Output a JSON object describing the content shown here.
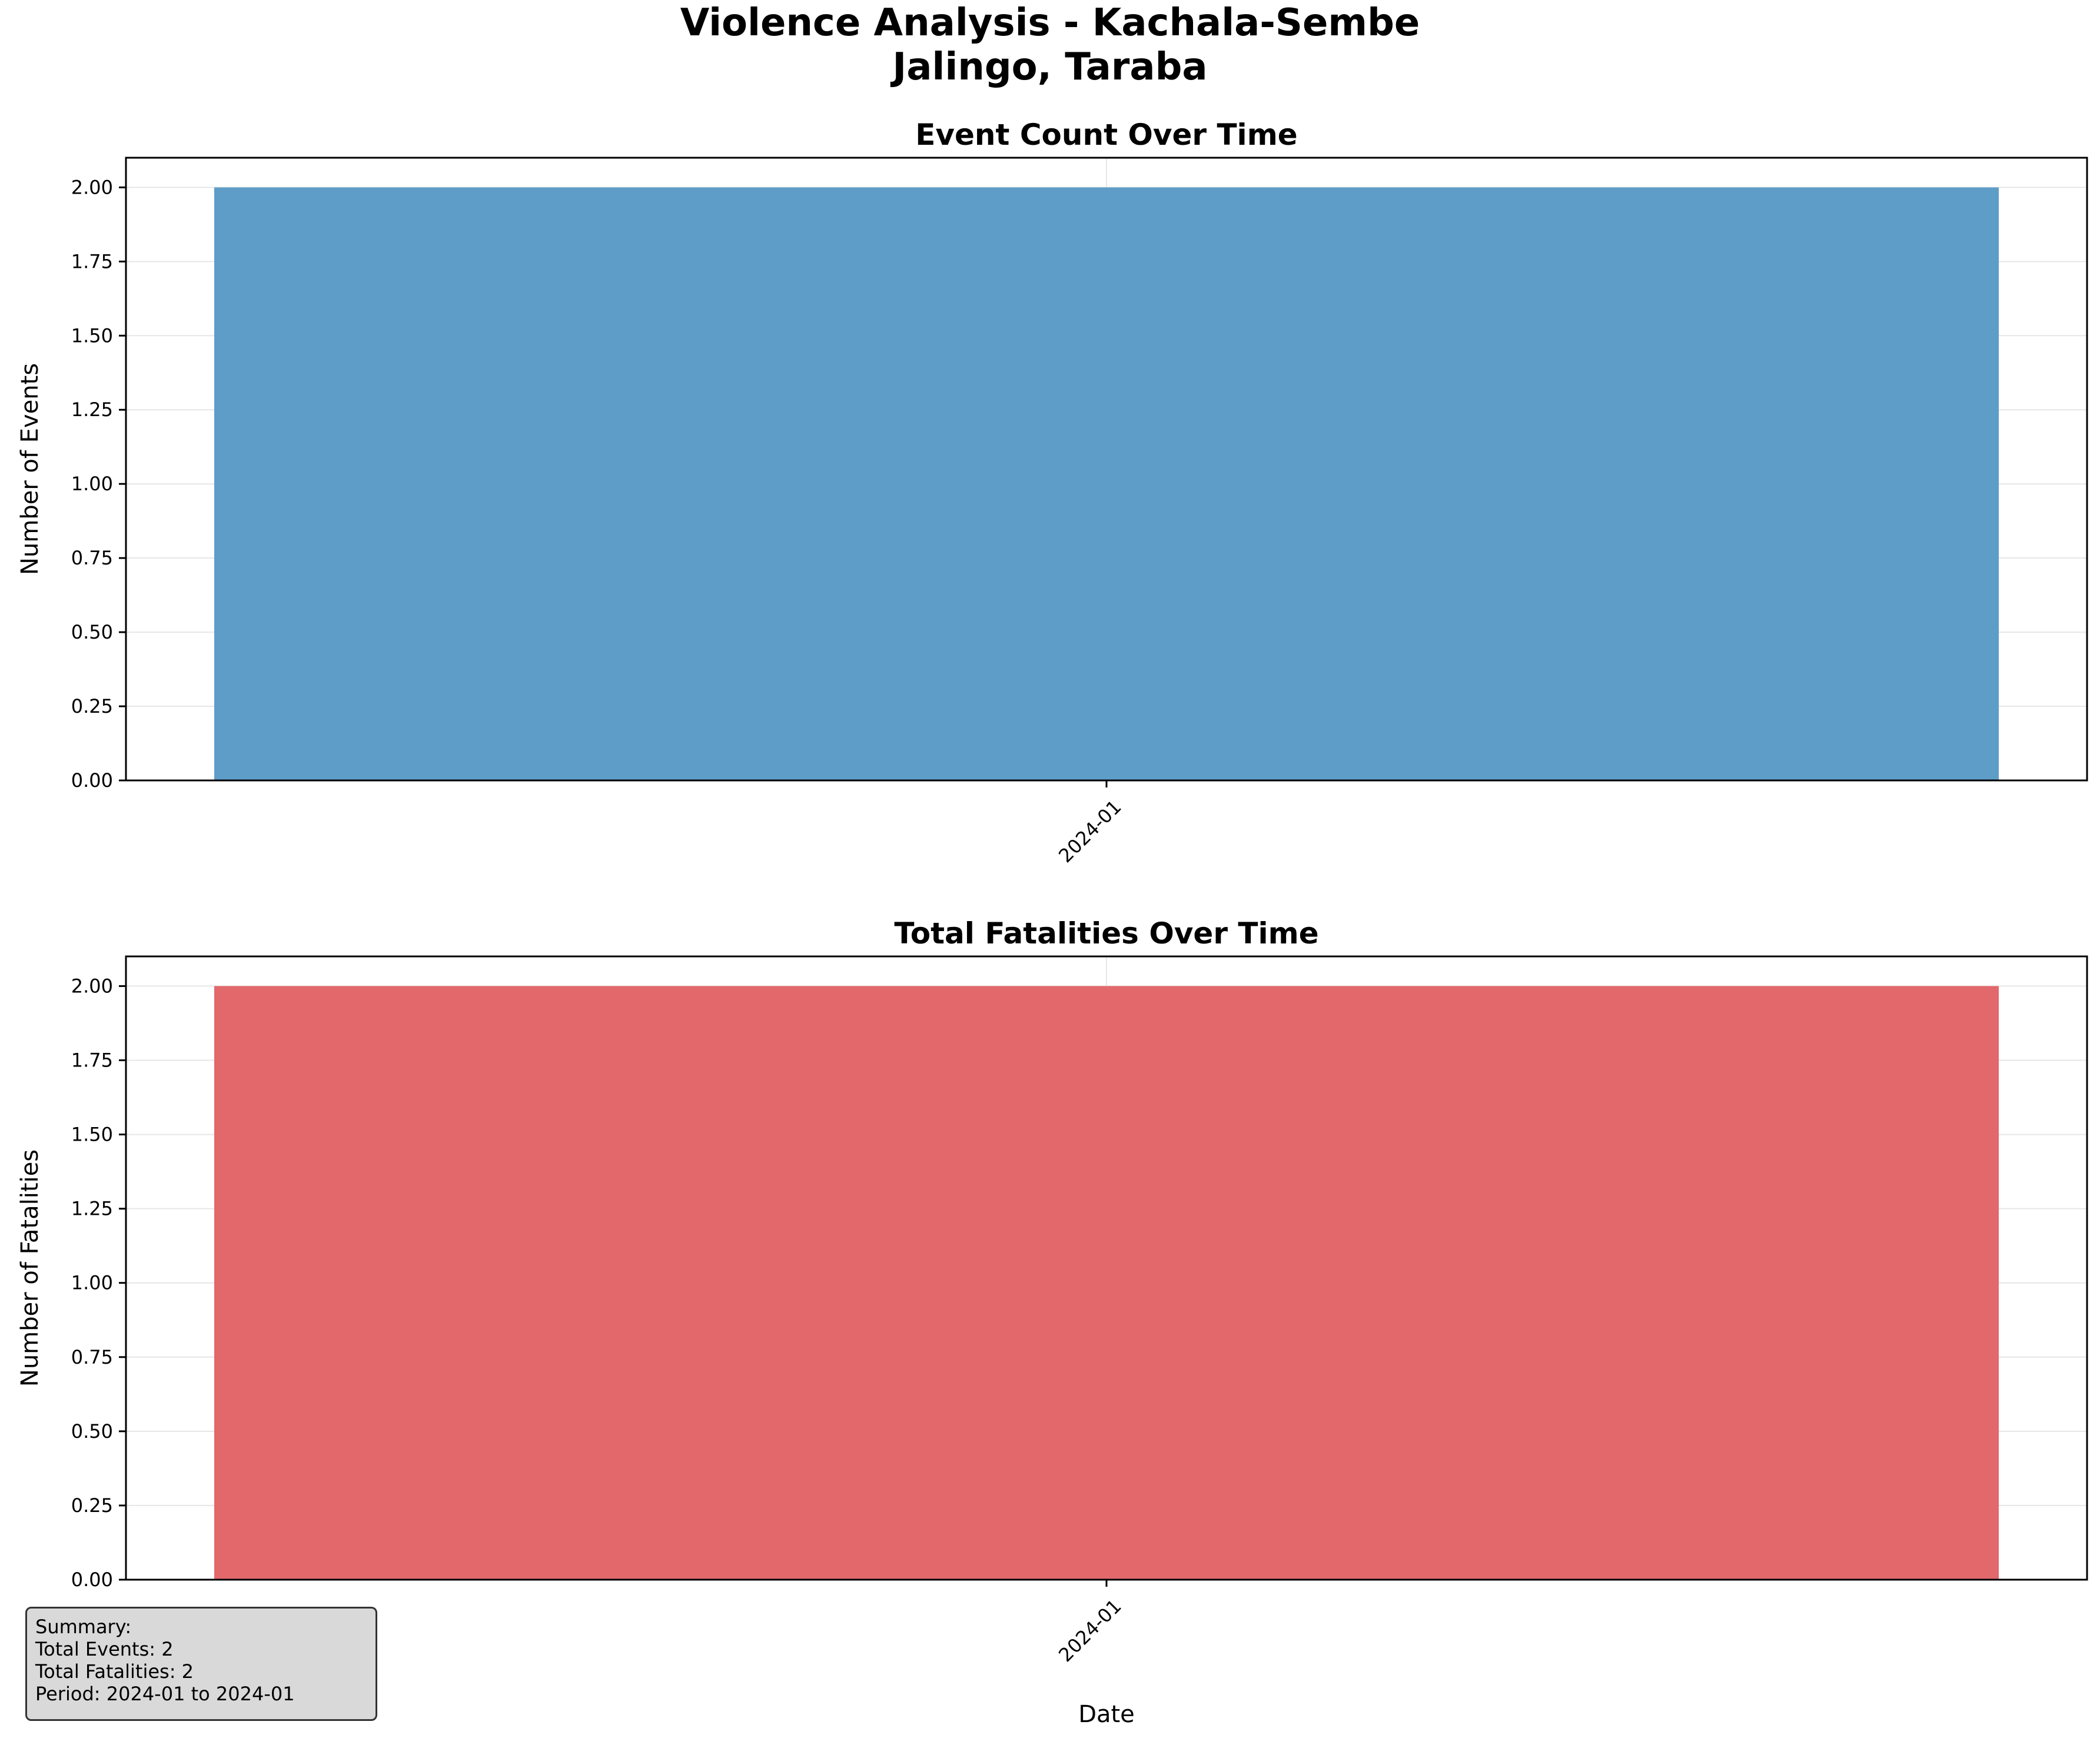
{
  "title_line1": "Violence Analysis - Kachala-Sembe",
  "title_line2": "Jalingo, Taraba",
  "colors": {
    "events_bar": "#5f9dc9",
    "fatalities_bar": "#e2686b",
    "grid": "#e6e6e6"
  },
  "summary": {
    "heading": "Summary:",
    "total_events": "Total Events: 2",
    "total_fatalities": "Total Fatalities: 2",
    "period": "Period: 2024-01 to 2024-01"
  },
  "chart_data": [
    {
      "type": "bar",
      "title": "Event Count Over Time",
      "xlabel": "",
      "ylabel": "Number of Events",
      "categories": [
        "2024-01"
      ],
      "values": [
        2
      ],
      "ylim": [
        0,
        2.1
      ],
      "yticks": [
        "0.00",
        "0.25",
        "0.50",
        "0.75",
        "1.00",
        "1.25",
        "1.50",
        "1.75",
        "2.00"
      ],
      "grid": true
    },
    {
      "type": "bar",
      "title": "Total Fatalities Over Time",
      "xlabel": "Date",
      "ylabel": "Number of Fatalities",
      "categories": [
        "2024-01"
      ],
      "values": [
        2
      ],
      "ylim": [
        0,
        2.1
      ],
      "yticks": [
        "0.00",
        "0.25",
        "0.50",
        "0.75",
        "1.00",
        "1.25",
        "1.50",
        "1.75",
        "2.00"
      ],
      "grid": true
    }
  ]
}
